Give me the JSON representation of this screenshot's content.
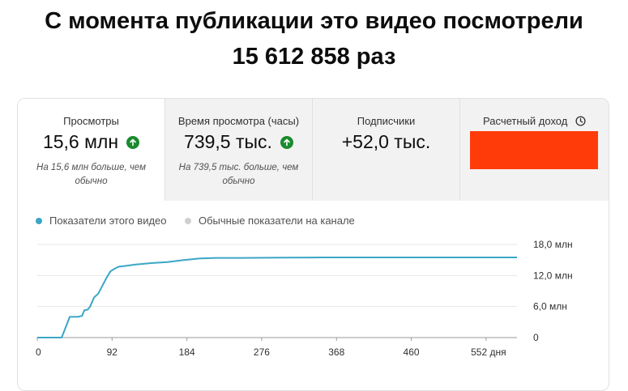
{
  "headline": {
    "line1": "С момента публикации это видео посмотрели",
    "line2": "15 612 858 раз"
  },
  "metrics": [
    {
      "label": "Просмотры",
      "value": "15,6 млн",
      "trend_icon": "arrow-up-circle-icon",
      "note": "На 15,6 млн больше, чем обычно"
    },
    {
      "label": "Время просмотра (часы)",
      "value": "739,5 тыс.",
      "trend_icon": "arrow-up-circle-icon",
      "note": "На 739,5 тыс. больше, чем обычно"
    },
    {
      "label": "Подписчики",
      "value": "+52,0 тыс."
    },
    {
      "label": "Расчетный доход",
      "icon": "clock-icon",
      "value_redacted": true
    }
  ],
  "legend": {
    "this_video": "Показатели этого видео",
    "typical": "Обычные показатели на канале"
  },
  "colors": {
    "series": "#3ba6c6",
    "typical": "#cfcfcf",
    "trend_up": "#1a8a2e",
    "redaction": "#ff3b0a"
  },
  "chart_data": {
    "type": "line",
    "x_ticks": [
      "0",
      "92",
      "184",
      "276",
      "368",
      "460",
      "552 дня"
    ],
    "y_ticks": [
      "0",
      "6,0 млн",
      "12,0 млн",
      "18,0 млн"
    ],
    "xlim": [
      0,
      590
    ],
    "ylim": [
      0,
      18000000
    ],
    "series": [
      {
        "name": "Показатели этого видео",
        "x": [
          0,
          30,
          40,
          50,
          55,
          58,
          62,
          65,
          70,
          75,
          80,
          85,
          90,
          95,
          100,
          110,
          120,
          140,
          160,
          180,
          200,
          220,
          250,
          300,
          350,
          400,
          450,
          500,
          550,
          590
        ],
        "y": [
          0,
          0,
          4000000,
          4000000,
          4200000,
          5300000,
          5400000,
          6000000,
          7800000,
          8500000,
          10000000,
          11500000,
          12800000,
          13300000,
          13700000,
          13900000,
          14100000,
          14400000,
          14600000,
          15000000,
          15300000,
          15400000,
          15400000,
          15450000,
          15500000,
          15500000,
          15500000,
          15500000,
          15500000,
          15500000
        ]
      }
    ],
    "legend_position": "top-left",
    "grid": true
  }
}
